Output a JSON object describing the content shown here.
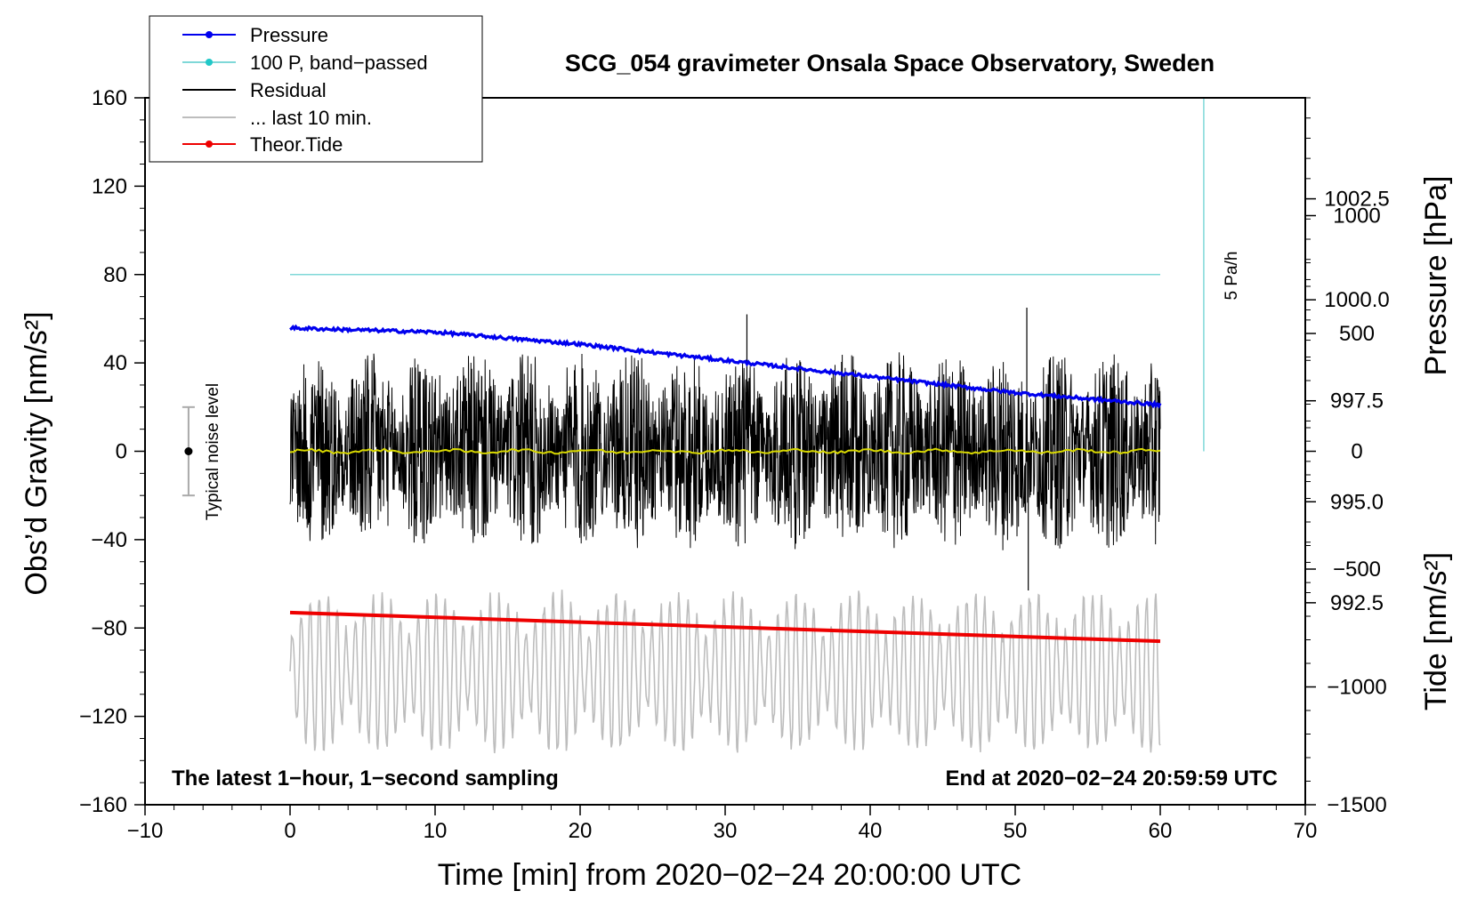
{
  "chart_data": {
    "type": "line",
    "title": "SCG_054 gravimeter Onsala Space Observatory, Sweden",
    "xlabel": "Time [min] from 2020−02−24 20:00:00 UTC",
    "ylabel_left": "Obs’d Gravity [nm/s²]",
    "ylabel_pressure": "Pressure [hPa]",
    "ylabel_tide": "Tide [nm/s²]",
    "xlim": [
      -10,
      70
    ],
    "ylim": [
      -160,
      160
    ],
    "pressure_lim": [
      987.5,
      1005.0
    ],
    "tide_lim": [
      -1500,
      1500
    ],
    "x_ticks": [
      "−10",
      "0",
      "10",
      "20",
      "30",
      "40",
      "50",
      "60",
      "70"
    ],
    "y_ticks": [
      "−160",
      "−120",
      "−80",
      "−40",
      "0",
      "40",
      "80",
      "120",
      "160"
    ],
    "pressure_ticks": [
      "992.5",
      "995.0",
      "997.5",
      "1000.0",
      "1002.5"
    ],
    "tide_ticks": [
      "−1500",
      "−1000",
      "−500",
      "0",
      "500",
      "1000"
    ],
    "legend": [
      "Pressure",
      "100 P, band−passed",
      "Residual",
      "... last 10 min.",
      "Theor.Tide"
    ],
    "colors": {
      "pressure": "#0000ee",
      "bandpassed": "#7fd8d8",
      "residual": "#000000",
      "last10": "#bdbdbd",
      "tide": "#ee0000",
      "smoothed": "#d8d800"
    },
    "series": [
      {
        "name": "Pressure",
        "unit": "hPa",
        "x": [
          0,
          10,
          20,
          30,
          40,
          50,
          60
        ],
        "values": [
          999.3,
          999.2,
          998.9,
          998.5,
          998.1,
          997.7,
          997.4
        ]
      },
      {
        "name": "100 P, band−passed",
        "unit": "nm/s²",
        "x": [
          0,
          60
        ],
        "values": [
          80,
          80
        ]
      },
      {
        "name": "Residual",
        "unit": "nm/s²",
        "x_range": [
          0,
          60
        ],
        "center": 0,
        "envelope": 45,
        "extremes": [
          65,
          -63
        ]
      },
      {
        "name": "... last 10 min.",
        "unit": "nm/s²",
        "x_range": [
          0,
          60
        ],
        "center": -100,
        "envelope": 35
      },
      {
        "name": "Theor.Tide",
        "unit": "nm/s²",
        "x": [
          0,
          60
        ],
        "values": [
          -73,
          -86
        ]
      }
    ],
    "notes": {
      "band": "5 Pa/h",
      "noise": "Typical noise level",
      "latest": "The latest 1−hour, 1−second sampling",
      "end": "End at 2020−02−24 20:59:59 UTC"
    },
    "noise_bar": {
      "x": -7,
      "center": 0,
      "half_range": 20
    },
    "band_line": {
      "x": 63,
      "from": 0,
      "to": 160
    }
  }
}
